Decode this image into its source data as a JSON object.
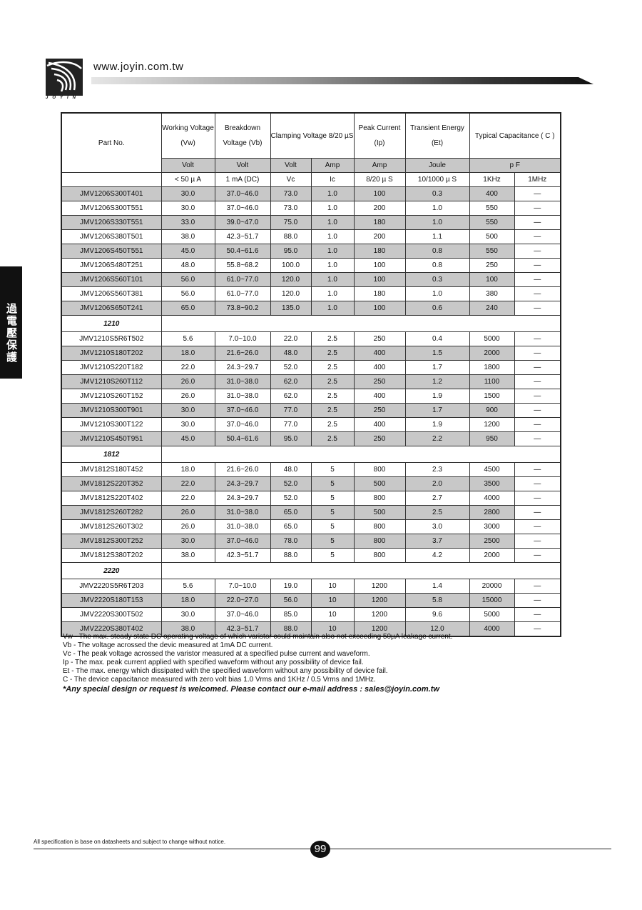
{
  "header": {
    "url": "www.joyin.com.tw",
    "logo_text": "JOYIN"
  },
  "side_tab": "過電壓保護",
  "table": {
    "headers": {
      "part": "Part No.",
      "vw": "Working Voltage (Vw)",
      "vb": "Breakdown Voltage (Vb)",
      "clamp": "Clamping Voltage 8/20 µS",
      "ip": "Peak Current (Ip)",
      "et": "Transient Energy (Et)",
      "cap": "Typical Capacitance ( C )"
    },
    "units": [
      "Volt",
      "Volt",
      "Volt",
      "Amp",
      "Amp",
      "Joule",
      "p F"
    ],
    "conditions": [
      "< 50 µ A",
      "1 mA (DC)",
      "Vc",
      "Ic",
      "8/20 µ S",
      "10/1000 µ S",
      "1KHz",
      "1MHz"
    ],
    "groups": [
      {
        "label": "",
        "rows": [
          [
            "JMV1206S300T401",
            "30.0",
            "37.0~46.0",
            "73.0",
            "1.0",
            "100",
            "0.3",
            "400",
            "—"
          ],
          [
            "JMV1206S300T551",
            "30.0",
            "37.0~46.0",
            "73.0",
            "1.0",
            "200",
            "1.0",
            "550",
            "—"
          ],
          [
            "JMV1206S330T551",
            "33.0",
            "39.0~47.0",
            "75.0",
            "1.0",
            "180",
            "1.0",
            "550",
            "—"
          ],
          [
            "JMV1206S380T501",
            "38.0",
            "42.3~51.7",
            "88.0",
            "1.0",
            "200",
            "1.1",
            "500",
            "—"
          ],
          [
            "JMV1206S450T551",
            "45.0",
            "50.4~61.6",
            "95.0",
            "1.0",
            "180",
            "0.8",
            "550",
            "—"
          ],
          [
            "JMV1206S480T251",
            "48.0",
            "55.8~68.2",
            "100.0",
            "1.0",
            "100",
            "0.8",
            "250",
            "—"
          ],
          [
            "JMV1206S560T101",
            "56.0",
            "61.0~77.0",
            "120.0",
            "1.0",
            "100",
            "0.3",
            "100",
            "—"
          ],
          [
            "JMV1206S560T381",
            "56.0",
            "61.0~77.0",
            "120.0",
            "1.0",
            "180",
            "1.0",
            "380",
            "—"
          ],
          [
            "JMV1206S650T241",
            "65.0",
            "73.8~90.2",
            "135.0",
            "1.0",
            "100",
            "0.6",
            "240",
            "—"
          ]
        ]
      },
      {
        "label": "1210",
        "rows": [
          [
            "JMV1210S5R6T502",
            "5.6",
            "7.0~10.0",
            "22.0",
            "2.5",
            "250",
            "0.4",
            "5000",
            "—"
          ],
          [
            "JMV1210S180T202",
            "18.0",
            "21.6~26.0",
            "48.0",
            "2.5",
            "400",
            "1.5",
            "2000",
            "—"
          ],
          [
            "JMV1210S220T182",
            "22.0",
            "24.3~29.7",
            "52.0",
            "2.5",
            "400",
            "1.7",
            "1800",
            "—"
          ],
          [
            "JMV1210S260T112",
            "26.0",
            "31.0~38.0",
            "62.0",
            "2.5",
            "250",
            "1.2",
            "1100",
            "—"
          ],
          [
            "JMV1210S260T152",
            "26.0",
            "31.0~38.0",
            "62.0",
            "2.5",
            "400",
            "1.9",
            "1500",
            "—"
          ],
          [
            "JMV1210S300T901",
            "30.0",
            "37.0~46.0",
            "77.0",
            "2.5",
            "250",
            "1.7",
            "900",
            "—"
          ],
          [
            "JMV1210S300T122",
            "30.0",
            "37.0~46.0",
            "77.0",
            "2.5",
            "400",
            "1.9",
            "1200",
            "—"
          ],
          [
            "JMV1210S450T951",
            "45.0",
            "50.4~61.6",
            "95.0",
            "2.5",
            "250",
            "2.2",
            "950",
            "—"
          ]
        ]
      },
      {
        "label": "1812",
        "rows": [
          [
            "JMV1812S180T452",
            "18.0",
            "21.6~26.0",
            "48.0",
            "5",
            "800",
            "2.3",
            "4500",
            "—"
          ],
          [
            "JMV1812S220T352",
            "22.0",
            "24.3~29.7",
            "52.0",
            "5",
            "500",
            "2.0",
            "3500",
            "—"
          ],
          [
            "JMV1812S220T402",
            "22.0",
            "24.3~29.7",
            "52.0",
            "5",
            "800",
            "2.7",
            "4000",
            "—"
          ],
          [
            "JMV1812S260T282",
            "26.0",
            "31.0~38.0",
            "65.0",
            "5",
            "500",
            "2.5",
            "2800",
            "—"
          ],
          [
            "JMV1812S260T302",
            "26.0",
            "31.0~38.0",
            "65.0",
            "5",
            "800",
            "3.0",
            "3000",
            "—"
          ],
          [
            "JMV1812S300T252",
            "30.0",
            "37.0~46.0",
            "78.0",
            "5",
            "800",
            "3.7",
            "2500",
            "—"
          ],
          [
            "JMV1812S380T202",
            "38.0",
            "42.3~51.7",
            "88.0",
            "5",
            "800",
            "4.2",
            "2000",
            "—"
          ]
        ]
      },
      {
        "label": "2220",
        "rows": [
          [
            "JMV2220S5R6T203",
            "5.6",
            "7.0~10.0",
            "19.0",
            "10",
            "1200",
            "1.4",
            "20000",
            "—"
          ],
          [
            "JMV2220S180T153",
            "18.0",
            "22.0~27.0",
            "56.0",
            "10",
            "1200",
            "5.8",
            "15000",
            "—"
          ],
          [
            "JMV2220S300T502",
            "30.0",
            "37.0~46.0",
            "85.0",
            "10",
            "1200",
            "9.6",
            "5000",
            "—"
          ],
          [
            "JMV2220S380T402",
            "38.0",
            "42.3~51.7",
            "88.0",
            "10",
            "1200",
            "12.0",
            "4000",
            "—"
          ]
        ]
      }
    ]
  },
  "notes": [
    "Vw - The max. steady state DC operating voltage of which varistor could maintain also not exceeding 50µA leakage current.",
    "Vb - The voltage acrossed the devic measured at 1mA DC current.",
    "Vc - The peak voltage acrossed the varistor measured at a specified pulse current and waveform.",
    "Ip - The max. peak current applied with specified waveform without any possibility of device fail.",
    "Et - The max. energy which dissipated with the specified waveform without any possibility of device fail.",
    "C - The device capacitance measured with zero volt bias 1.0 Vrms and 1KHz / 0.5 Vrms and 1MHz."
  ],
  "contact": "*Any special design or request is welcomed. Please contact our e-mail address : sales@joyin.com.tw",
  "footer": {
    "disclaimer": "All specification is base on datasheets and subject to change without notice.",
    "page_number": "99"
  }
}
